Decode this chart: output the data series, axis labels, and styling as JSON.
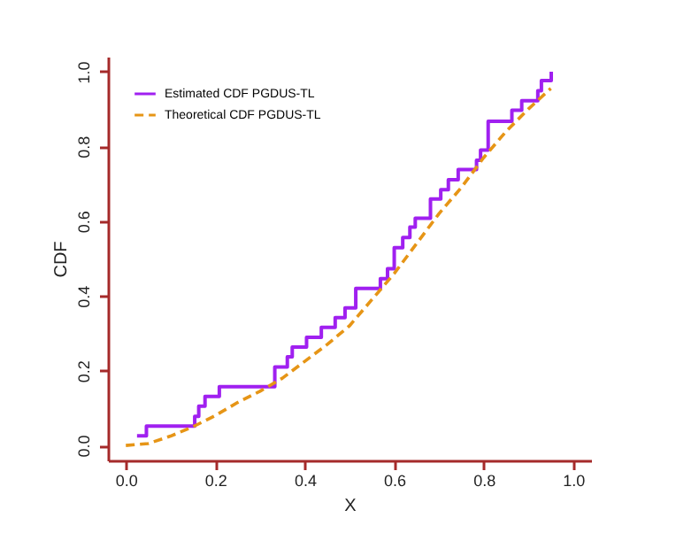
{
  "chart_data": {
    "type": "line",
    "xlabel": "X",
    "ylabel": "CDF",
    "xlim": [
      -0.04,
      1.04
    ],
    "ylim": [
      -0.04,
      1.04
    ],
    "xticks": [
      {
        "value": 0,
        "label": "0.0"
      },
      0.2,
      0.4,
      0.6,
      0.8,
      {
        "value": 1,
        "label": "1.0"
      }
    ],
    "yticks": [
      {
        "value": 0,
        "label": "0.0"
      },
      0.2,
      0.4,
      0.6,
      0.8,
      {
        "value": 1,
        "label": "1.0"
      }
    ],
    "grid": false,
    "legend": "top left",
    "marker": "none",
    "series": [
      {
        "name": "Estimated CDF PGDUS-TL",
        "type": "step",
        "color": "#a020f0",
        "line_style": "solid",
        "x": [
          0.025,
          0.046,
          0.154,
          0.163,
          0.177,
          0.209,
          0.333,
          0.361,
          0.372,
          0.404,
          0.437,
          0.468,
          0.49,
          0.514,
          0.569,
          0.585,
          0.6,
          0.619,
          0.635,
          0.647,
          0.681,
          0.704,
          0.721,
          0.743,
          0.784,
          0.793,
          0.81,
          0.863,
          0.885,
          0.921,
          0.929,
          0.951,
          0.951
        ],
        "values": [
          0.026,
          0.052,
          0.078,
          0.105,
          0.131,
          0.157,
          0.21,
          0.237,
          0.263,
          0.289,
          0.316,
          0.342,
          0.368,
          0.42,
          0.446,
          0.473,
          0.529,
          0.556,
          0.584,
          0.608,
          0.659,
          0.684,
          0.711,
          0.738,
          0.763,
          0.79,
          0.867,
          0.897,
          0.922,
          0.949,
          0.976,
          0.976,
          1.0
        ]
      },
      {
        "name": "Theoretical CDF PGDUS-TL",
        "type": "line",
        "color": "#e69516",
        "line_style": "dashed",
        "x": [
          0,
          0.05,
          0.1,
          0.15,
          0.2,
          0.25,
          0.3,
          0.35,
          0.4,
          0.45,
          0.5,
          0.55,
          0.6,
          0.65,
          0.7,
          0.75,
          0.8,
          0.85,
          0.9,
          0.95
        ],
        "values": [
          0,
          0.005,
          0.025,
          0.05,
          0.08,
          0.115,
          0.145,
          0.18,
          0.225,
          0.27,
          0.32,
          0.39,
          0.46,
          0.54,
          0.62,
          0.69,
          0.77,
          0.84,
          0.9,
          0.955
        ]
      }
    ]
  }
}
